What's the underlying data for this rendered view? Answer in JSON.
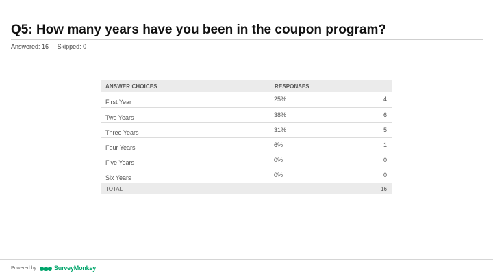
{
  "question": {
    "title": "Q5: How many years have you been in the coupon program?",
    "answered": "Answered: 16",
    "skipped": "Skipped: 0"
  },
  "table": {
    "headers": {
      "choices": "ANSWER CHOICES",
      "responses": "RESPONSES"
    },
    "rows": [
      {
        "choice": "First Year",
        "percent": "25%",
        "count": "4"
      },
      {
        "choice": "Two Years",
        "percent": "38%",
        "count": "6"
      },
      {
        "choice": "Three Years",
        "percent": "31%",
        "count": "5"
      },
      {
        "choice": "Four Years",
        "percent": "6%",
        "count": "1"
      },
      {
        "choice": "Five Years",
        "percent": "0%",
        "count": "0"
      },
      {
        "choice": "Six Years",
        "percent": "0%",
        "count": "0"
      }
    ],
    "total": {
      "label": "TOTAL",
      "count": "16"
    }
  },
  "footer": {
    "powered_by": "Powered by",
    "brand": "SurveyMonkey",
    "brand_color": "#00a56b",
    "logo_icon": "surveymonkey-logo-icon"
  }
}
